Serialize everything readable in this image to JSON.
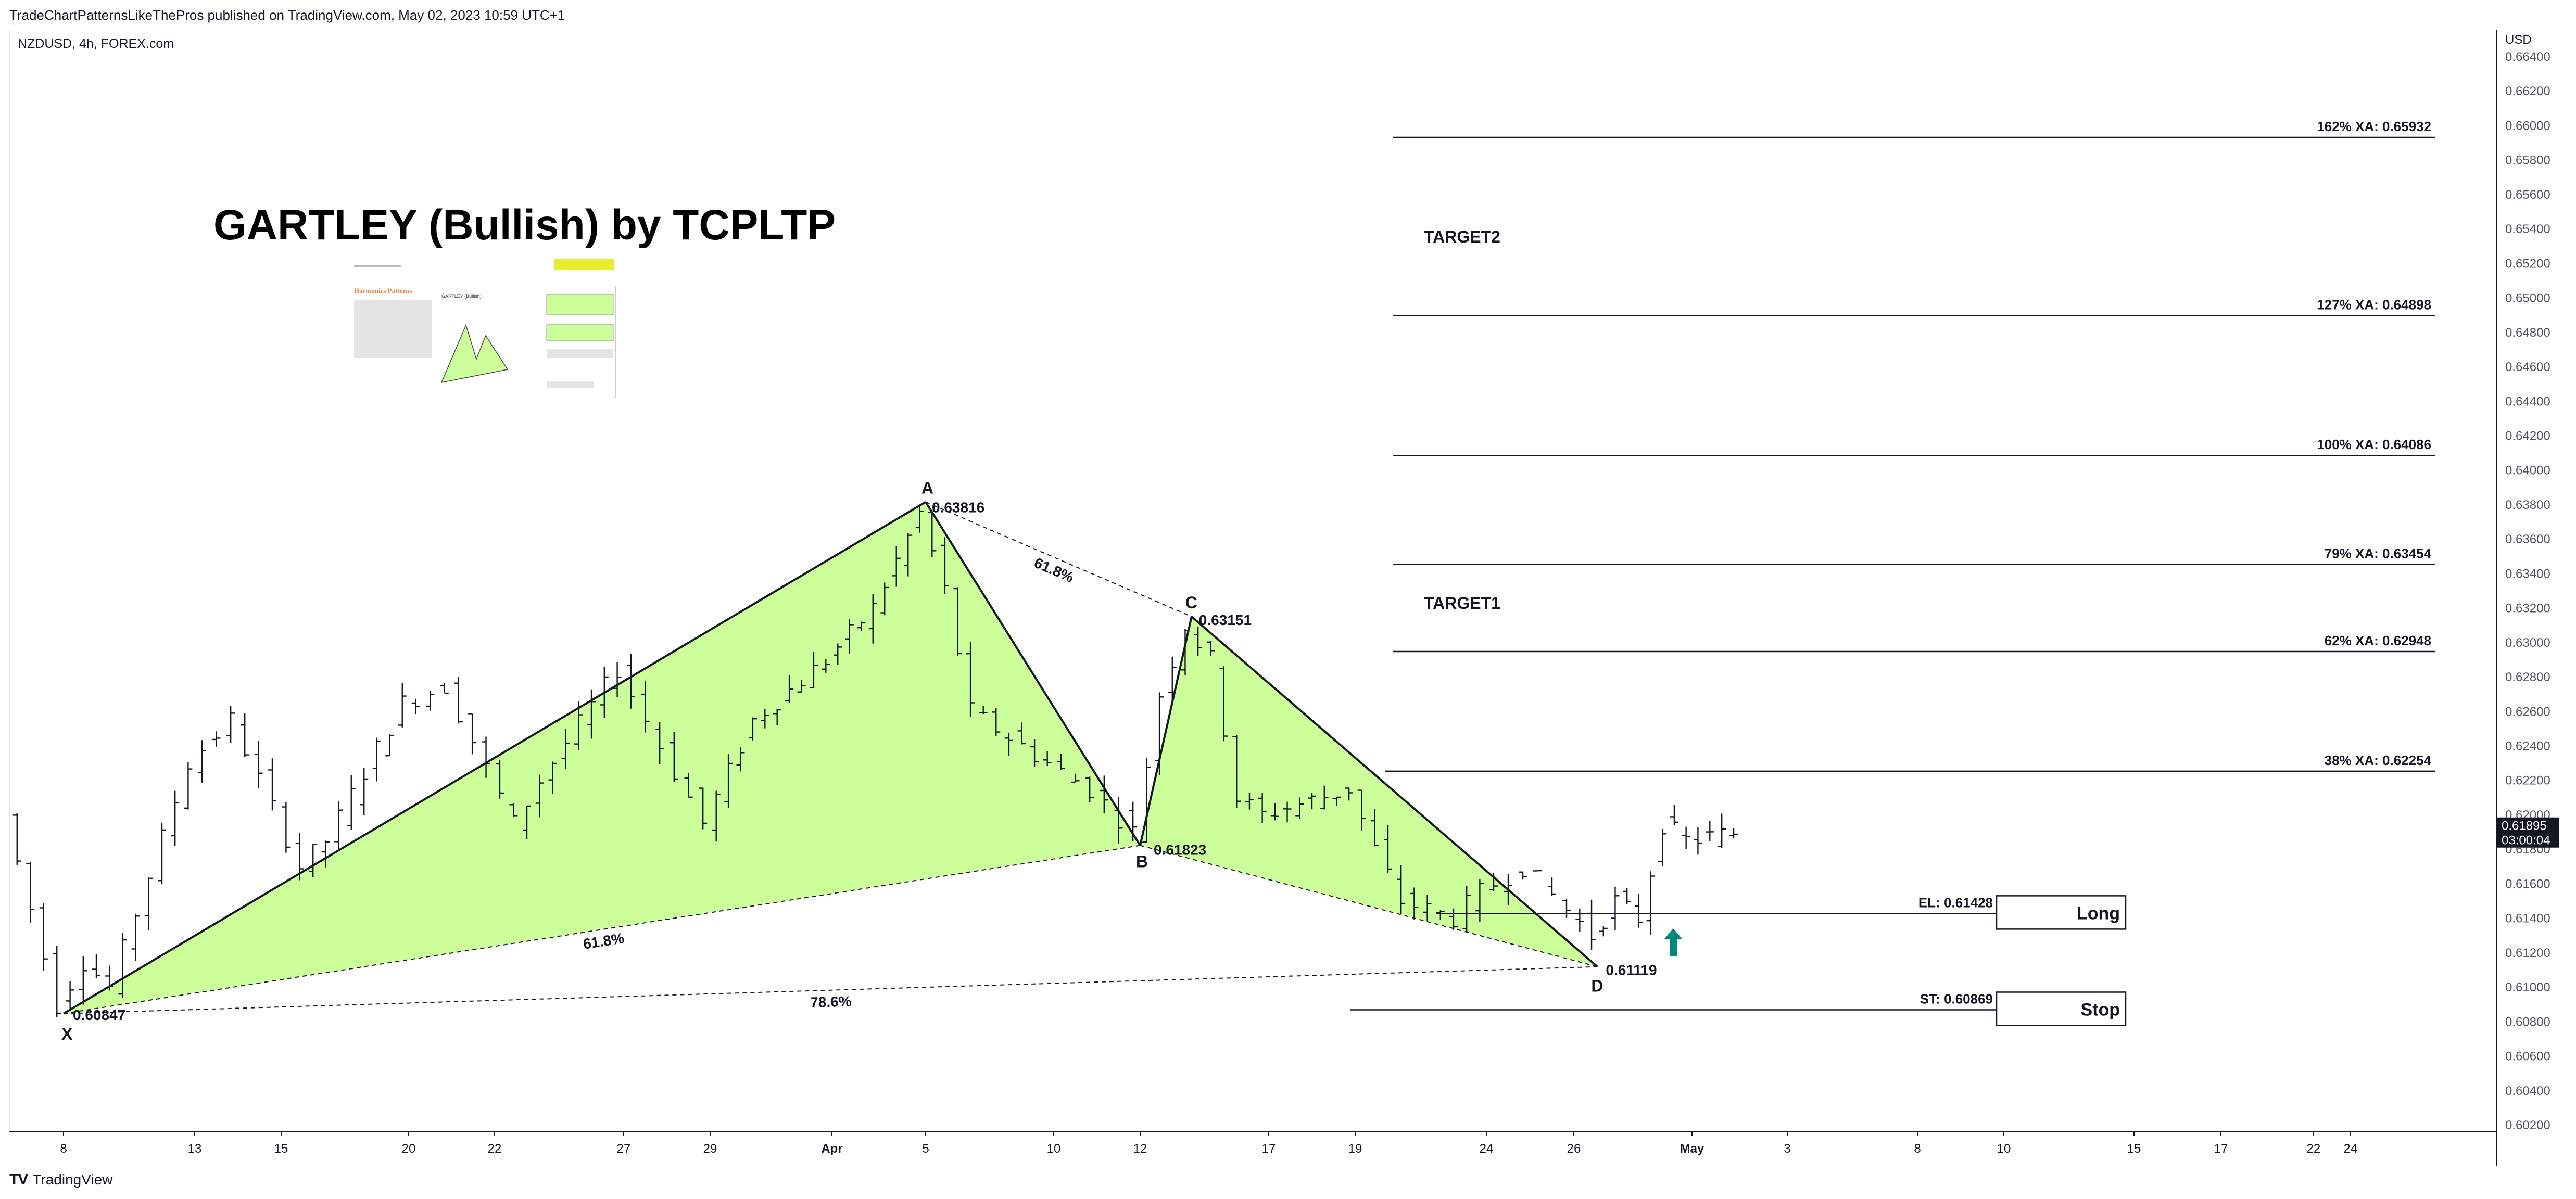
{
  "header": {
    "published_line": "TradeChartPatternsLikeThePros published on TradingView.com, May 02, 2023 10:59 UTC+1",
    "symbol_line": "NZDUSD, 4h, FOREX.com"
  },
  "footer": {
    "brand_logo": "TV",
    "brand_name": "TradingView"
  },
  "colors": {
    "pattern_fill": "#ccff99",
    "line": "#131722",
    "arrow": "#00897b",
    "last_price_bg": "#131722",
    "insert_highlight": "#e6ee2f"
  },
  "icons": {
    "entry_arrow": "arrow-up-icon"
  },
  "chart_data": {
    "type": "ohlc",
    "title": "GARTLEY (Bullish) by TCPLTP",
    "currency": "USD",
    "ylim": [
      0.6015,
      0.6645
    ],
    "y_ticks": [
      "0.66400",
      "0.66200",
      "0.66000",
      "0.65800",
      "0.65600",
      "0.65400",
      "0.65200",
      "0.65000",
      "0.64800",
      "0.64600",
      "0.64400",
      "0.64200",
      "0.64000",
      "0.63800",
      "0.63600",
      "0.63400",
      "0.63200",
      "0.63000",
      "0.62800",
      "0.62600",
      "0.62400",
      "0.62200",
      "0.62000",
      "0.61800",
      "0.61600",
      "0.61400",
      "0.61200",
      "0.61000",
      "0.60800",
      "0.60600",
      "0.60400",
      "0.60200"
    ],
    "x_ticks": [
      {
        "label": "8",
        "date": "2023-03-08"
      },
      {
        "label": "13",
        "date": "2023-03-13"
      },
      {
        "label": "15",
        "date": "2023-03-15"
      },
      {
        "label": "20",
        "date": "2023-03-20"
      },
      {
        "label": "22",
        "date": "2023-03-22"
      },
      {
        "label": "27",
        "date": "2023-03-27"
      },
      {
        "label": "29",
        "date": "2023-03-29"
      },
      {
        "label": "Apr",
        "date": "2023-04-03"
      },
      {
        "label": "5",
        "date": "2023-04-05"
      },
      {
        "label": "10",
        "date": "2023-04-10"
      },
      {
        "label": "12",
        "date": "2023-04-12"
      },
      {
        "label": "17",
        "date": "2023-04-17"
      },
      {
        "label": "19",
        "date": "2023-04-19"
      },
      {
        "label": "24",
        "date": "2023-04-24"
      },
      {
        "label": "26",
        "date": "2023-04-26"
      },
      {
        "label": "May",
        "date": "2023-05-01"
      },
      {
        "label": "3",
        "date": "2023-05-03"
      },
      {
        "label": "8",
        "date": "2023-05-08"
      },
      {
        "label": "10",
        "date": "2023-05-10"
      },
      {
        "label": "15",
        "date": "2023-05-15"
      },
      {
        "label": "17",
        "date": "2023-05-17"
      },
      {
        "label": "22",
        "date": "2023-05-22"
      },
      {
        "label": "24",
        "date": "2023-05-24"
      }
    ],
    "last_price": {
      "value": "0.61895",
      "countdown": "03:00:04"
    },
    "price_path": [
      {
        "date": "2023-03-06",
        "price": 0.62
      },
      {
        "date": "2023-03-08",
        "price": 0.609
      },
      {
        "date": "2023-03-09",
        "price": 0.6115
      },
      {
        "date": "2023-03-10",
        "price": 0.61
      },
      {
        "date": "2023-03-13",
        "price": 0.623
      },
      {
        "date": "2023-03-14",
        "price": 0.6255
      },
      {
        "date": "2023-03-16",
        "price": 0.617
      },
      {
        "date": "2023-03-17",
        "price": 0.6185
      },
      {
        "date": "2023-03-20",
        "price": 0.6265
      },
      {
        "date": "2023-03-21",
        "price": 0.6275
      },
      {
        "date": "2023-03-23",
        "price": 0.6195
      },
      {
        "date": "2023-03-24",
        "price": 0.622
      },
      {
        "date": "2023-03-27",
        "price": 0.6285
      },
      {
        "date": "2023-03-28",
        "price": 0.624
      },
      {
        "date": "2023-03-29",
        "price": 0.6195
      },
      {
        "date": "2023-03-31",
        "price": 0.6255
      },
      {
        "date": "2023-04-03",
        "price": 0.629
      },
      {
        "date": "2023-04-04",
        "price": 0.632
      },
      {
        "date": "2023-04-05",
        "price": 0.6375
      },
      {
        "date": "2023-04-06",
        "price": 0.633
      },
      {
        "date": "2023-04-07",
        "price": 0.626
      },
      {
        "date": "2023-04-10",
        "price": 0.623
      },
      {
        "date": "2023-04-11",
        "price": 0.6215
      },
      {
        "date": "2023-04-12",
        "price": 0.619
      },
      {
        "date": "2023-04-13",
        "price": 0.627
      },
      {
        "date": "2023-04-14",
        "price": 0.631
      },
      {
        "date": "2023-04-15",
        "price": 0.629
      },
      {
        "date": "2023-04-16",
        "price": 0.621
      },
      {
        "date": "2023-04-17",
        "price": 0.62
      },
      {
        "date": "2023-04-19",
        "price": 0.6215
      },
      {
        "date": "2023-04-20",
        "price": 0.618
      },
      {
        "date": "2023-04-21",
        "price": 0.615
      },
      {
        "date": "2023-04-23",
        "price": 0.614
      },
      {
        "date": "2023-04-24",
        "price": 0.6155
      },
      {
        "date": "2023-04-25",
        "price": 0.617
      },
      {
        "date": "2023-04-26",
        "price": 0.6145
      },
      {
        "date": "2023-04-27",
        "price": 0.613
      },
      {
        "date": "2023-04-28",
        "price": 0.615
      },
      {
        "date": "2023-04-29",
        "price": 0.614
      },
      {
        "date": "2023-04-30",
        "price": 0.6195
      },
      {
        "date": "2023-05-01",
        "price": 0.6185
      },
      {
        "date": "2023-05-02",
        "price": 0.61895
      }
    ],
    "pattern_points": [
      {
        "label": "X",
        "date": "2023-03-08",
        "price": 0.60847,
        "price_label": "0.60847"
      },
      {
        "label": "A",
        "date": "2023-04-05",
        "price": 0.63816,
        "price_label": "0.63816"
      },
      {
        "label": "B",
        "date": "2023-04-12",
        "price": 0.61823,
        "price_label": "0.61823"
      },
      {
        "label": "C",
        "date": "2023-04-14",
        "price": 0.63151,
        "price_label": "0.63151"
      },
      {
        "label": "D",
        "date": "2023-04-27",
        "price": 0.61119,
        "price_label": "0.61119"
      }
    ],
    "ratio_labels": [
      {
        "text": "61.8%",
        "between": "A-C"
      },
      {
        "text": "61.8%",
        "between": "X-B"
      },
      {
        "text": "78.6%",
        "between": "X-D"
      }
    ],
    "fib_levels": [
      {
        "label": "162% XA: 0.65932",
        "price": 0.65932
      },
      {
        "label": "127% XA: 0.64898",
        "price": 0.64898
      },
      {
        "label": "100% XA: 0.64086",
        "price": 0.64086
      },
      {
        "label": "79% XA: 0.63454",
        "price": 0.63454
      },
      {
        "label": "62% XA: 0.62948",
        "price": 0.62948
      },
      {
        "label": "38% XA: 0.62254",
        "price": 0.62254
      }
    ],
    "targets": [
      {
        "label": "TARGET2"
      },
      {
        "label": "TARGET1"
      }
    ],
    "trade_levels": [
      {
        "label": "EL: 0.61428",
        "price": 0.61428,
        "box": "Long"
      },
      {
        "label": "ST: 0.60869",
        "price": 0.60869,
        "box": "Stop"
      }
    ]
  },
  "insert_image": {
    "heading": "Harmonics Patterns",
    "sub_title": "GARTLEY (Bullish)"
  }
}
